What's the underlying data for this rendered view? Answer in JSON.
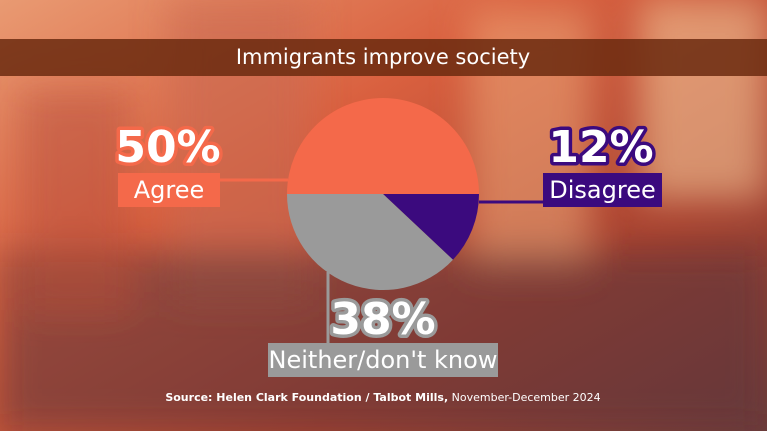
{
  "chart_data": {
    "type": "pie",
    "title": "Immigrants improve society",
    "categories": [
      "Agree",
      "Disagree",
      "Neither/don't know"
    ],
    "values": [
      50,
      12,
      38
    ],
    "value_labels": [
      "50%",
      "12%",
      "38%"
    ],
    "colors": [
      "#f4694a",
      "#3b0a7e",
      "#9a9a9a"
    ],
    "source_label": "Source: Helen Clark Foundation / Talbot Mills,",
    "source_date": "November-December 2024"
  }
}
